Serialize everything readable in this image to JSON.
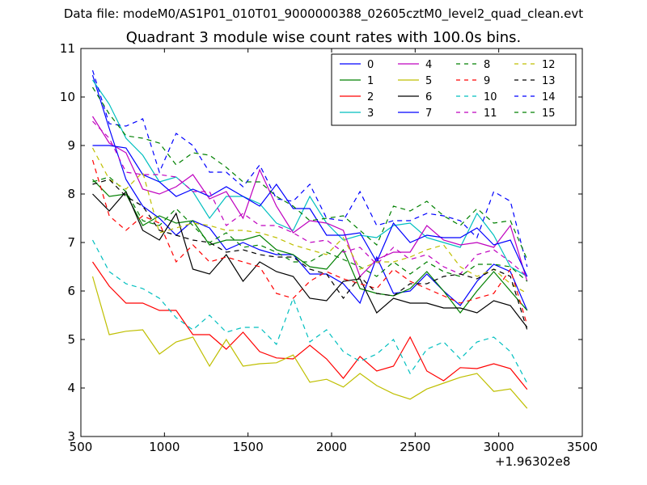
{
  "chart_data": {
    "type": "line",
    "file_title": "Data file: modeM0/AS1P01_010T01_9000000388_02605cztM0_level2_quad_clean.evt",
    "title": "Quadrant 3 module wise count rates with 100.0s bins.",
    "x_offset_label": "+1.96302e8",
    "xlim": [
      500,
      3500
    ],
    "ylim": [
      3,
      11
    ],
    "xticks": [
      "500",
      "1000",
      "1500",
      "2000",
      "2500",
      "3000",
      "3500"
    ],
    "yticks": [
      "3",
      "4",
      "5",
      "6",
      "7",
      "8",
      "9",
      "10",
      "11"
    ],
    "legend_position": "top-right",
    "x": [
      570,
      670,
      770,
      870,
      970,
      1070,
      1170,
      1270,
      1370,
      1470,
      1570,
      1670,
      1770,
      1870,
      1970,
      2070,
      2170,
      2270,
      2370,
      2470,
      2570,
      2670,
      2770,
      2870,
      2970,
      3070,
      3170
    ],
    "series": [
      {
        "name": "0",
        "color": "#0000ff",
        "dash": "solid",
        "values": [
          10.45,
          9.35,
          8.3,
          7.75,
          7.5,
          7.15,
          7.45,
          7.3,
          6.85,
          7.0,
          6.85,
          6.75,
          6.75,
          6.35,
          6.35,
          6.15,
          5.75,
          6.7,
          5.95,
          6.0,
          6.35,
          6.0,
          5.7,
          6.2,
          6.55,
          6.4,
          5.6
        ]
      },
      {
        "name": "1",
        "color": "#008000",
        "dash": "solid",
        "values": [
          8.3,
          7.95,
          8.0,
          7.35,
          7.55,
          7.4,
          7.45,
          6.95,
          7.05,
          7.05,
          7.15,
          6.85,
          6.75,
          6.5,
          6.45,
          6.85,
          6.05,
          5.95,
          5.9,
          6.05,
          6.4,
          6.0,
          5.55,
          6.0,
          6.4,
          6.0,
          5.6
        ]
      },
      {
        "name": "2",
        "color": "#ff0000",
        "dash": "solid",
        "values": [
          6.6,
          6.1,
          5.75,
          5.75,
          5.6,
          5.6,
          5.1,
          5.1,
          4.8,
          5.15,
          4.75,
          4.62,
          4.6,
          4.88,
          4.6,
          4.2,
          4.65,
          4.35,
          4.45,
          5.05,
          4.35,
          4.15,
          4.42,
          4.4,
          4.5,
          4.4,
          3.97
        ]
      },
      {
        "name": "3",
        "color": "#00bfbf",
        "dash": "solid",
        "values": [
          10.35,
          9.85,
          9.15,
          8.8,
          8.25,
          8.35,
          8.05,
          7.5,
          7.95,
          7.95,
          7.8,
          7.4,
          7.25,
          7.95,
          7.4,
          7.05,
          7.15,
          7.1,
          7.35,
          7.4,
          7.1,
          7.0,
          6.9,
          7.6,
          7.15,
          6.5,
          6.3
        ]
      },
      {
        "name": "4",
        "color": "#bf00bf",
        "dash": "solid",
        "values": [
          9.6,
          9.05,
          8.85,
          8.1,
          8.0,
          8.15,
          8.4,
          7.9,
          8.05,
          7.5,
          8.5,
          7.75,
          7.2,
          7.45,
          7.4,
          7.25,
          6.3,
          6.65,
          6.8,
          6.8,
          7.35,
          7.05,
          6.95,
          7.0,
          6.9,
          7.35,
          6.2
        ]
      },
      {
        "name": "5",
        "color": "#bfbf00",
        "dash": "solid",
        "values": [
          6.3,
          5.1,
          5.17,
          5.2,
          4.7,
          4.95,
          5.05,
          4.45,
          5.0,
          4.45,
          4.5,
          4.52,
          4.68,
          4.12,
          4.18,
          4.02,
          4.3,
          4.05,
          3.88,
          3.77,
          3.98,
          4.1,
          4.22,
          4.3,
          3.93,
          3.98,
          3.58
        ]
      },
      {
        "name": "6",
        "color": "#000000",
        "dash": "solid",
        "values": [
          8.0,
          7.65,
          8.05,
          7.25,
          7.05,
          7.6,
          6.45,
          6.35,
          6.75,
          6.2,
          6.6,
          6.4,
          6.3,
          5.85,
          5.8,
          6.2,
          6.25,
          5.55,
          5.85,
          5.75,
          5.75,
          5.65,
          5.65,
          5.55,
          5.8,
          5.7,
          5.25
        ]
      },
      {
        "name": "7",
        "color": "#0000ff",
        "dash": "solid",
        "values": [
          9.0,
          9.0,
          8.95,
          8.4,
          8.25,
          7.95,
          8.1,
          7.95,
          8.15,
          7.95,
          7.75,
          8.2,
          7.7,
          7.7,
          7.15,
          7.15,
          7.2,
          6.6,
          7.4,
          7.0,
          7.15,
          7.1,
          7.1,
          7.3,
          6.95,
          7.05,
          6.3
        ]
      },
      {
        "name": "8",
        "color": "#008000",
        "dash": "dashed",
        "values": [
          8.25,
          8.35,
          8.05,
          7.45,
          7.35,
          7.7,
          7.35,
          7.0,
          7.2,
          6.9,
          6.95,
          6.8,
          6.6,
          6.6,
          6.8,
          6.65,
          6.5,
          6.3,
          6.6,
          6.35,
          6.6,
          6.4,
          6.3,
          6.55,
          6.55,
          6.5,
          6.2
        ]
      },
      {
        "name": "9",
        "color": "#ff0000",
        "dash": "dashed",
        "values": [
          8.7,
          7.55,
          7.25,
          7.55,
          7.4,
          6.6,
          6.95,
          6.6,
          6.7,
          6.6,
          6.5,
          5.95,
          5.85,
          6.2,
          6.4,
          6.25,
          6.15,
          6.05,
          6.45,
          6.2,
          6.05,
          5.9,
          5.75,
          5.85,
          5.95,
          6.45,
          5.3
        ]
      },
      {
        "name": "10",
        "color": "#00bfbf",
        "dash": "dashed",
        "values": [
          7.05,
          6.4,
          6.15,
          6.05,
          5.85,
          5.45,
          5.2,
          5.5,
          5.15,
          5.25,
          5.25,
          4.9,
          5.85,
          4.95,
          5.2,
          4.75,
          4.55,
          4.7,
          5.0,
          4.3,
          4.8,
          4.95,
          4.6,
          4.95,
          5.05,
          4.75,
          4.1
        ]
      },
      {
        "name": "11",
        "color": "#bf00bf",
        "dash": "dashed",
        "values": [
          9.5,
          9.15,
          8.45,
          8.4,
          8.4,
          8.35,
          8.05,
          8.05,
          7.35,
          7.6,
          7.35,
          7.35,
          7.2,
          7.0,
          7.05,
          6.8,
          6.9,
          6.55,
          6.9,
          6.65,
          6.75,
          6.5,
          6.35,
          6.75,
          6.85,
          6.6,
          6.3
        ]
      },
      {
        "name": "12",
        "color": "#bfbf00",
        "dash": "dashed",
        "values": [
          8.95,
          8.3,
          8.1,
          8.45,
          7.2,
          7.3,
          7.4,
          7.35,
          7.25,
          7.25,
          7.2,
          7.1,
          6.95,
          6.85,
          6.75,
          7.1,
          6.45,
          6.6,
          6.6,
          6.7,
          6.85,
          6.95,
          6.5,
          6.3,
          6.45,
          6.15,
          5.95
        ]
      },
      {
        "name": "13",
        "color": "#000000",
        "dash": "dashed",
        "values": [
          8.2,
          8.3,
          7.95,
          7.75,
          7.25,
          7.15,
          7.05,
          7.0,
          6.8,
          6.85,
          6.75,
          6.7,
          6.7,
          6.45,
          6.35,
          5.85,
          6.3,
          5.95,
          5.9,
          6.15,
          6.15,
          6.3,
          6.35,
          6.25,
          6.45,
          6.3,
          5.2
        ]
      },
      {
        "name": "14",
        "color": "#0000ff",
        "dash": "dashed",
        "values": [
          10.55,
          9.45,
          9.4,
          9.55,
          8.45,
          9.25,
          9.0,
          8.45,
          8.45,
          8.15,
          8.6,
          7.9,
          7.85,
          8.2,
          7.5,
          7.45,
          8.05,
          7.35,
          7.45,
          7.45,
          7.6,
          7.55,
          7.45,
          7.1,
          8.05,
          7.85,
          6.5
        ]
      },
      {
        "name": "15",
        "color": "#008000",
        "dash": "dashed",
        "values": [
          10.2,
          9.65,
          9.2,
          9.15,
          9.05,
          8.6,
          8.85,
          8.8,
          8.55,
          8.25,
          8.25,
          7.95,
          7.75,
          7.45,
          7.5,
          7.55,
          7.25,
          6.95,
          7.75,
          7.65,
          7.85,
          7.55,
          7.35,
          7.7,
          7.4,
          7.45,
          6.65
        ]
      }
    ]
  }
}
